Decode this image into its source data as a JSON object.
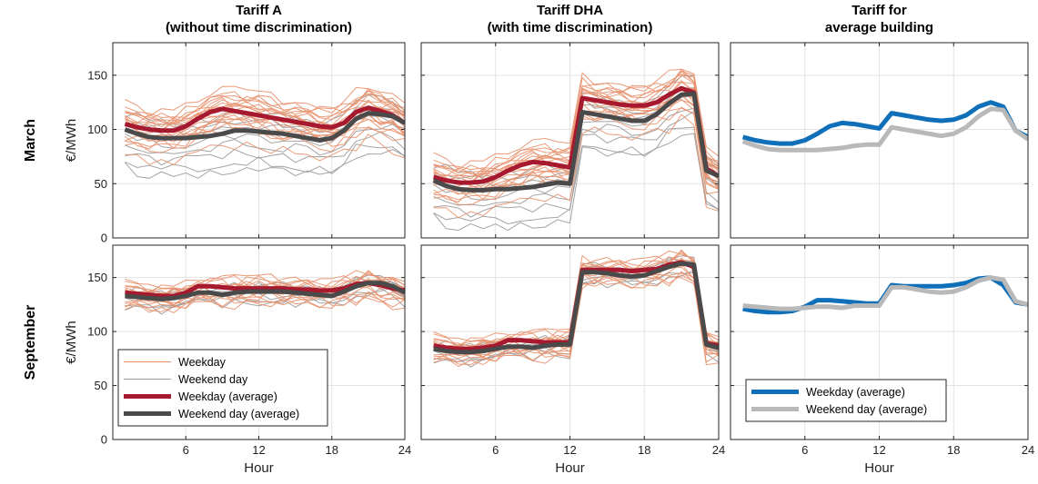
{
  "columns": [
    "Tariff A\n(without time discrimination)",
    "Tariff DHA\n(with time discrimination)",
    "Tariff for\naverage building"
  ],
  "rows": [
    "March",
    "September"
  ],
  "colors": {
    "weekday_thin": "#e8906c",
    "weekend_thin": "#9a9a9a",
    "weekday_avg": "#a6192e",
    "weekend_avg": "#4a4a4a",
    "building_weekday": "#0f6fb8",
    "building_weekend": "#b9b9b9",
    "grid": "#e3e3e3",
    "axes": "#262626"
  },
  "legends": {
    "tariffs": [
      "Weekday",
      "Weekend day",
      "Weekday (average)",
      "Weekend day (average)"
    ],
    "building": [
      "Weekday (average)",
      "Weekend day (average)"
    ]
  },
  "chart_data": [
    {
      "type": "line",
      "row": "March",
      "column": "Tariff A\n(without time discrimination)",
      "xlabel": "",
      "ylabel": "€/MWh",
      "xlim": [
        0,
        24
      ],
      "ylim": [
        0,
        180
      ],
      "xticks": [
        6,
        12,
        18,
        24
      ],
      "yticks": [
        0,
        50,
        100,
        150
      ],
      "grid": true,
      "x": [
        1,
        2,
        3,
        4,
        5,
        6,
        7,
        8,
        9,
        10,
        11,
        12,
        13,
        14,
        15,
        16,
        17,
        18,
        19,
        20,
        21,
        22,
        23,
        24
      ],
      "series": [
        {
          "name": "Weekday (average)",
          "values": [
            105,
            102,
            100,
            99,
            99,
            103,
            110,
            116,
            119,
            117,
            115,
            113,
            111,
            109,
            107,
            105,
            103,
            102,
            106,
            116,
            120,
            117,
            113,
            106
          ]
        },
        {
          "name": "Weekend day (average)",
          "values": [
            100,
            96,
            93,
            92,
            92,
            92,
            93,
            94,
            96,
            99,
            99,
            98,
            97,
            96,
            94,
            92,
            90,
            92,
            99,
            110,
            115,
            114,
            112,
            106
          ]
        }
      ],
      "thin_lines": {
        "weekday_count": 20,
        "weekend_count": 8,
        "weekday_offsets": [
          12,
          8,
          5,
          2,
          -2,
          -6,
          -10,
          -14,
          10,
          -18,
          18,
          -30,
          6,
          -4,
          14,
          -8,
          3,
          -1,
          -12,
          9
        ],
        "weekend_offsets": [
          15,
          5,
          -5,
          -12,
          -20,
          -28,
          -35,
          8
        ]
      }
    },
    {
      "type": "line",
      "row": "March",
      "column": "Tariff DHA\n(with time discrimination)",
      "xlabel": "",
      "ylabel": "",
      "xlim": [
        0,
        24
      ],
      "ylim": [
        0,
        180
      ],
      "xticks": [
        6,
        12,
        18,
        24
      ],
      "yticks": [
        0,
        50,
        100,
        150
      ],
      "grid": true,
      "x": [
        1,
        2,
        3,
        4,
        5,
        6,
        7,
        8,
        9,
        10,
        11,
        12,
        13,
        14,
        15,
        16,
        17,
        18,
        19,
        20,
        21,
        22,
        23,
        24
      ],
      "series": [
        {
          "name": "Weekday (average)",
          "values": [
            56,
            53,
            51,
            51,
            52,
            56,
            62,
            67,
            70,
            69,
            67,
            65,
            129,
            127,
            125,
            123,
            122,
            122,
            125,
            132,
            138,
            134,
            64,
            57
          ]
        },
        {
          "name": "Weekend day (average)",
          "values": [
            53,
            48,
            45,
            44,
            44,
            45,
            45,
            46,
            47,
            49,
            51,
            50,
            116,
            114,
            112,
            110,
            108,
            108,
            114,
            124,
            132,
            133,
            62,
            57
          ]
        }
      ],
      "thin_lines": {
        "weekday_count": 20,
        "weekend_count": 8,
        "weekday_offsets": [
          12,
          8,
          5,
          2,
          -2,
          -6,
          -10,
          -14,
          10,
          -18,
          18,
          -30,
          6,
          -4,
          14,
          -8,
          3,
          -1,
          -12,
          9
        ],
        "weekend_offsets": [
          15,
          5,
          -5,
          -12,
          -20,
          -28,
          -35,
          8
        ]
      }
    },
    {
      "type": "line",
      "row": "March",
      "column": "Tariff for\naverage building",
      "xlabel": "",
      "ylabel": "",
      "xlim": [
        0,
        24
      ],
      "ylim": [
        0,
        180
      ],
      "xticks": [
        6,
        12,
        18,
        24
      ],
      "yticks": [
        0,
        50,
        100,
        150
      ],
      "grid": true,
      "x": [
        1,
        2,
        3,
        4,
        5,
        6,
        7,
        8,
        9,
        10,
        11,
        12,
        13,
        14,
        15,
        16,
        17,
        18,
        19,
        20,
        21,
        22,
        23,
        24
      ],
      "series": [
        {
          "name": "Weekday (average)",
          "values": [
            93,
            90,
            88,
            87,
            87,
            90,
            96,
            103,
            106,
            105,
            103,
            101,
            115,
            113,
            111,
            109,
            108,
            109,
            113,
            121,
            125,
            121,
            99,
            93
          ]
        },
        {
          "name": "Weekend day (average)",
          "values": [
            89,
            85,
            82,
            81,
            81,
            81,
            81,
            82,
            83,
            85,
            86,
            86,
            102,
            100,
            98,
            96,
            94,
            96,
            102,
            112,
            119,
            118,
            99,
            91
          ]
        }
      ]
    },
    {
      "type": "line",
      "row": "September",
      "column": "Tariff A\n(without time discrimination)",
      "xlabel": "Hour",
      "ylabel": "€/MWh",
      "xlim": [
        0,
        24
      ],
      "ylim": [
        0,
        180
      ],
      "xticks": [
        6,
        12,
        18,
        24
      ],
      "yticks": [
        0,
        50,
        100,
        150
      ],
      "grid": true,
      "x": [
        1,
        2,
        3,
        4,
        5,
        6,
        7,
        8,
        9,
        10,
        11,
        12,
        13,
        14,
        15,
        16,
        17,
        18,
        19,
        20,
        21,
        22,
        23,
        24
      ],
      "series": [
        {
          "name": "Weekday (average)",
          "values": [
            136,
            135,
            134,
            133,
            133,
            136,
            142,
            142,
            141,
            140,
            140,
            140,
            140,
            140,
            139,
            139,
            138,
            138,
            140,
            144,
            145,
            143,
            140,
            138
          ]
        },
        {
          "name": "Weekend day (average)",
          "values": [
            133,
            132,
            131,
            130,
            131,
            133,
            136,
            136,
            134,
            136,
            137,
            137,
            137,
            137,
            136,
            135,
            134,
            133,
            137,
            142,
            145,
            145,
            142,
            136
          ]
        }
      ],
      "thin_lines": {
        "weekday_count": 14,
        "weekend_count": 6,
        "weekday_offsets": [
          6,
          4,
          2,
          -1,
          -3,
          -5,
          -8,
          -10,
          5,
          -12,
          8,
          -14,
          3,
          -6
        ],
        "weekend_offsets": [
          5,
          2,
          -3,
          -6,
          -9,
          4
        ]
      }
    },
    {
      "type": "line",
      "row": "September",
      "column": "Tariff DHA\n(with time discrimination)",
      "xlabel": "Hour",
      "ylabel": "",
      "xlim": [
        0,
        24
      ],
      "ylim": [
        0,
        180
      ],
      "xticks": [
        6,
        12,
        18,
        24
      ],
      "yticks": [
        0,
        50,
        100,
        150
      ],
      "grid": true,
      "x": [
        1,
        2,
        3,
        4,
        5,
        6,
        7,
        8,
        9,
        10,
        11,
        12,
        13,
        14,
        15,
        16,
        17,
        18,
        19,
        20,
        21,
        22,
        23,
        24
      ],
      "series": [
        {
          "name": "Weekday (average)",
          "values": [
            87,
            85,
            84,
            84,
            85,
            87,
            92,
            92,
            91,
            90,
            90,
            90,
            157,
            157,
            157,
            157,
            156,
            157,
            158,
            162,
            164,
            160,
            89,
            87
          ]
        },
        {
          "name": "Weekend day (average)",
          "values": [
            84,
            82,
            81,
            81,
            82,
            84,
            86,
            86,
            85,
            87,
            88,
            88,
            155,
            155,
            154,
            152,
            151,
            152,
            156,
            160,
            163,
            162,
            88,
            85
          ]
        }
      ],
      "thin_lines": {
        "weekday_count": 14,
        "weekend_count": 6,
        "weekday_offsets": [
          6,
          4,
          2,
          -1,
          -3,
          -5,
          -8,
          -10,
          5,
          -12,
          8,
          -14,
          3,
          -6
        ],
        "weekend_offsets": [
          5,
          2,
          -3,
          -6,
          -9,
          4
        ]
      }
    },
    {
      "type": "line",
      "row": "September",
      "column": "Tariff for\naverage building",
      "xlabel": "Hour",
      "ylabel": "",
      "xlim": [
        0,
        24
      ],
      "ylim": [
        0,
        180
      ],
      "xticks": [
        6,
        12,
        18,
        24
      ],
      "yticks": [
        0,
        50,
        100,
        150
      ],
      "grid": true,
      "x": [
        1,
        2,
        3,
        4,
        5,
        6,
        7,
        8,
        9,
        10,
        11,
        12,
        13,
        14,
        15,
        16,
        17,
        18,
        19,
        20,
        21,
        22,
        23,
        24
      ],
      "series": [
        {
          "name": "Weekday (average)",
          "values": [
            121,
            119,
            118,
            118,
            119,
            123,
            129,
            129,
            128,
            127,
            126,
            126,
            143,
            142,
            142,
            142,
            142,
            143,
            145,
            149,
            150,
            143,
            127,
            125
          ]
        },
        {
          "name": "Weekend day (average)",
          "values": [
            124,
            123,
            122,
            121,
            121,
            122,
            123,
            123,
            122,
            124,
            124,
            124,
            141,
            141,
            139,
            137,
            136,
            137,
            141,
            147,
            150,
            148,
            128,
            125
          ]
        }
      ]
    }
  ]
}
